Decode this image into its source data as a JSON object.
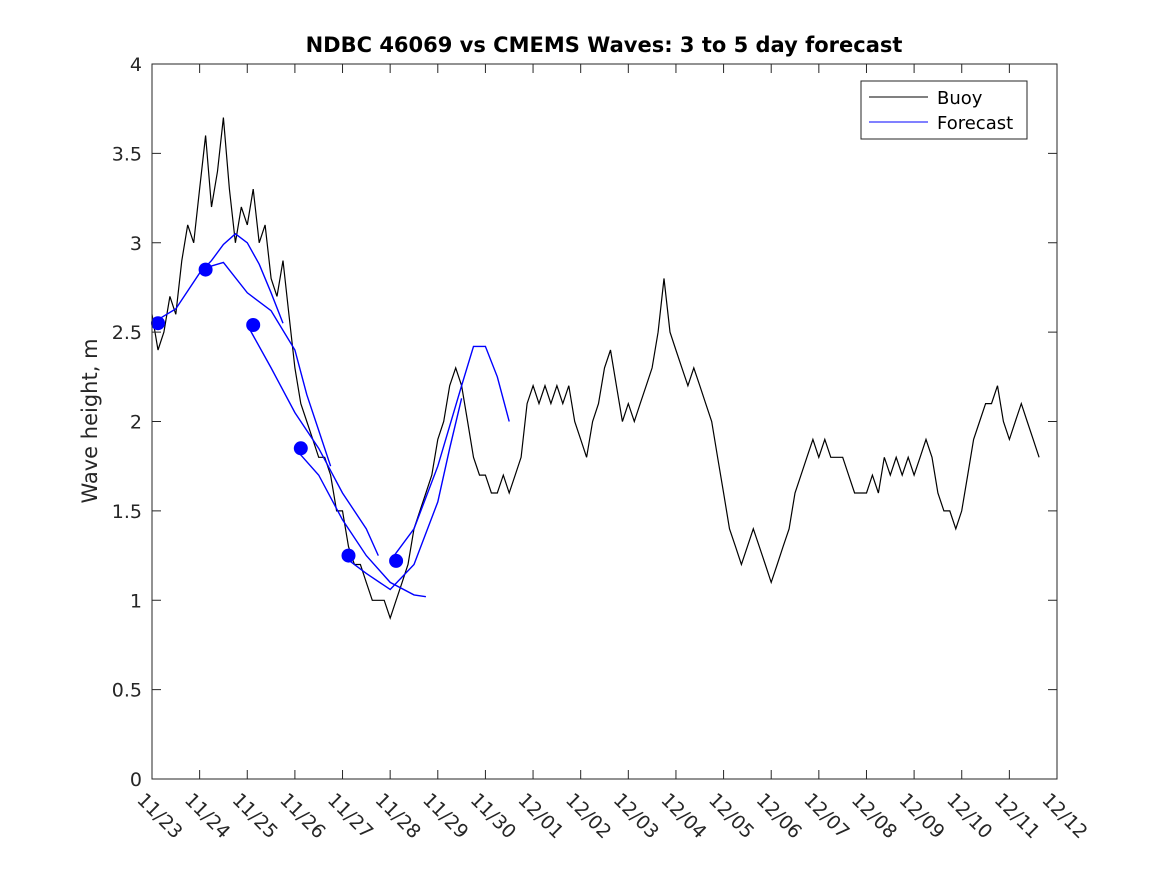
{
  "chart_data": {
    "type": "line",
    "title": "NDBC 46069 vs CMEMS Waves: 3 to 5 day forecast",
    "xlabel": "",
    "ylabel": "Wave height, m",
    "xlim": [
      "11/23",
      "12/12"
    ],
    "ylim": [
      0,
      4
    ],
    "x_tick_labels": [
      "11/23",
      "11/24",
      "11/25",
      "11/26",
      "11/27",
      "11/28",
      "11/29",
      "11/30",
      "12/01",
      "12/02",
      "12/03",
      "12/04",
      "12/05",
      "12/06",
      "12/07",
      "12/08",
      "12/09",
      "12/10",
      "12/11",
      "12/12"
    ],
    "y_tick_labels": [
      "0",
      "0.5",
      "1",
      "1.5",
      "2",
      "2.5",
      "3",
      "3.5",
      "4"
    ],
    "y_ticks": [
      0,
      0.5,
      1,
      1.5,
      2,
      2.5,
      3,
      3.5,
      4
    ],
    "grid": false,
    "legend_position": "top-right",
    "legend": [
      "Buoy",
      "Forecast"
    ],
    "colors": {
      "buoy": "#000000",
      "forecast": "#0000ff",
      "axis": "#262626"
    },
    "series": [
      {
        "name": "Buoy",
        "color": "#000000",
        "points": [
          [
            "11/23 00:00",
            2.6
          ],
          [
            "11/23 03:00",
            2.4
          ],
          [
            "11/23 06:00",
            2.5
          ],
          [
            "11/23 09:00",
            2.7
          ],
          [
            "11/23 12:00",
            2.6
          ],
          [
            "11/23 15:00",
            2.9
          ],
          [
            "11/23 18:00",
            3.1
          ],
          [
            "11/23 21:00",
            3.0
          ],
          [
            "11/24 00:00",
            3.3
          ],
          [
            "11/24 03:00",
            3.6
          ],
          [
            "11/24 06:00",
            3.2
          ],
          [
            "11/24 09:00",
            3.4
          ],
          [
            "11/24 12:00",
            3.7
          ],
          [
            "11/24 15:00",
            3.3
          ],
          [
            "11/24 18:00",
            3.0
          ],
          [
            "11/24 21:00",
            3.2
          ],
          [
            "11/25 00:00",
            3.1
          ],
          [
            "11/25 03:00",
            3.3
          ],
          [
            "11/25 06:00",
            3.0
          ],
          [
            "11/25 09:00",
            3.1
          ],
          [
            "11/25 12:00",
            2.8
          ],
          [
            "11/25 15:00",
            2.7
          ],
          [
            "11/25 18:00",
            2.9
          ],
          [
            "11/25 21:00",
            2.6
          ],
          [
            "11/26 00:00",
            2.3
          ],
          [
            "11/26 03:00",
            2.1
          ],
          [
            "11/26 06:00",
            2.0
          ],
          [
            "11/26 09:00",
            1.9
          ],
          [
            "11/26 12:00",
            1.8
          ],
          [
            "11/26 15:00",
            1.8
          ],
          [
            "11/26 18:00",
            1.7
          ],
          [
            "11/26 21:00",
            1.5
          ],
          [
            "11/27 00:00",
            1.5
          ],
          [
            "11/27 03:00",
            1.3
          ],
          [
            "11/27 06:00",
            1.2
          ],
          [
            "11/27 09:00",
            1.2
          ],
          [
            "11/27 12:00",
            1.1
          ],
          [
            "11/27 15:00",
            1.0
          ],
          [
            "11/27 18:00",
            1.0
          ],
          [
            "11/27 21:00",
            1.0
          ],
          [
            "11/28 00:00",
            0.9
          ],
          [
            "11/28 03:00",
            1.0
          ],
          [
            "11/28 06:00",
            1.1
          ],
          [
            "11/28 09:00",
            1.2
          ],
          [
            "11/28 12:00",
            1.4
          ],
          [
            "11/28 15:00",
            1.5
          ],
          [
            "11/28 18:00",
            1.6
          ],
          [
            "11/28 21:00",
            1.7
          ],
          [
            "11/29 00:00",
            1.9
          ],
          [
            "11/29 03:00",
            2.0
          ],
          [
            "11/29 06:00",
            2.2
          ],
          [
            "11/29 09:00",
            2.3
          ],
          [
            "11/29 12:00",
            2.2
          ],
          [
            "11/29 15:00",
            2.0
          ],
          [
            "11/29 18:00",
            1.8
          ],
          [
            "11/29 21:00",
            1.7
          ],
          [
            "11/30 00:00",
            1.7
          ],
          [
            "11/30 03:00",
            1.6
          ],
          [
            "11/30 06:00",
            1.6
          ],
          [
            "11/30 09:00",
            1.7
          ],
          [
            "11/30 12:00",
            1.6
          ],
          [
            "11/30 15:00",
            1.7
          ],
          [
            "11/30 18:00",
            1.8
          ],
          [
            "11/30 21:00",
            2.1
          ],
          [
            "12/01 00:00",
            2.2
          ],
          [
            "12/01 03:00",
            2.1
          ],
          [
            "12/01 06:00",
            2.2
          ],
          [
            "12/01 09:00",
            2.1
          ],
          [
            "12/01 12:00",
            2.2
          ],
          [
            "12/01 15:00",
            2.1
          ],
          [
            "12/01 18:00",
            2.2
          ],
          [
            "12/01 21:00",
            2.0
          ],
          [
            "12/02 00:00",
            1.9
          ],
          [
            "12/02 03:00",
            1.8
          ],
          [
            "12/02 06:00",
            2.0
          ],
          [
            "12/02 09:00",
            2.1
          ],
          [
            "12/02 12:00",
            2.3
          ],
          [
            "12/02 15:00",
            2.4
          ],
          [
            "12/02 18:00",
            2.2
          ],
          [
            "12/02 21:00",
            2.0
          ],
          [
            "12/03 00:00",
            2.1
          ],
          [
            "12/03 03:00",
            2.0
          ],
          [
            "12/03 06:00",
            2.1
          ],
          [
            "12/03 09:00",
            2.2
          ],
          [
            "12/03 12:00",
            2.3
          ],
          [
            "12/03 15:00",
            2.5
          ],
          [
            "12/03 18:00",
            2.8
          ],
          [
            "12/03 21:00",
            2.5
          ],
          [
            "12/04 00:00",
            2.4
          ],
          [
            "12/04 03:00",
            2.3
          ],
          [
            "12/04 06:00",
            2.2
          ],
          [
            "12/04 09:00",
            2.3
          ],
          [
            "12/04 12:00",
            2.2
          ],
          [
            "12/04 15:00",
            2.1
          ],
          [
            "12/04 18:00",
            2.0
          ],
          [
            "12/04 21:00",
            1.8
          ],
          [
            "12/05 00:00",
            1.6
          ],
          [
            "12/05 03:00",
            1.4
          ],
          [
            "12/05 06:00",
            1.3
          ],
          [
            "12/05 09:00",
            1.2
          ],
          [
            "12/05 12:00",
            1.3
          ],
          [
            "12/05 15:00",
            1.4
          ],
          [
            "12/05 18:00",
            1.3
          ],
          [
            "12/05 21:00",
            1.2
          ],
          [
            "12/06 00:00",
            1.1
          ],
          [
            "12/06 03:00",
            1.2
          ],
          [
            "12/06 06:00",
            1.3
          ],
          [
            "12/06 09:00",
            1.4
          ],
          [
            "12/06 12:00",
            1.6
          ],
          [
            "12/06 15:00",
            1.7
          ],
          [
            "12/06 18:00",
            1.8
          ],
          [
            "12/06 21:00",
            1.9
          ],
          [
            "12/07 00:00",
            1.8
          ],
          [
            "12/07 03:00",
            1.9
          ],
          [
            "12/07 06:00",
            1.8
          ],
          [
            "12/07 09:00",
            1.8
          ],
          [
            "12/07 12:00",
            1.8
          ],
          [
            "12/07 15:00",
            1.7
          ],
          [
            "12/07 18:00",
            1.6
          ],
          [
            "12/07 21:00",
            1.6
          ],
          [
            "12/08 00:00",
            1.6
          ],
          [
            "12/08 03:00",
            1.7
          ],
          [
            "12/08 06:00",
            1.6
          ],
          [
            "12/08 09:00",
            1.8
          ],
          [
            "12/08 12:00",
            1.7
          ],
          [
            "12/08 15:00",
            1.8
          ],
          [
            "12/08 18:00",
            1.7
          ],
          [
            "12/08 21:00",
            1.8
          ],
          [
            "12/09 00:00",
            1.7
          ],
          [
            "12/09 03:00",
            1.8
          ],
          [
            "12/09 06:00",
            1.9
          ],
          [
            "12/09 09:00",
            1.8
          ],
          [
            "12/09 12:00",
            1.6
          ],
          [
            "12/09 15:00",
            1.5
          ],
          [
            "12/09 18:00",
            1.5
          ],
          [
            "12/09 21:00",
            1.4
          ],
          [
            "12/10 00:00",
            1.5
          ],
          [
            "12/10 03:00",
            1.7
          ],
          [
            "12/10 06:00",
            1.9
          ],
          [
            "12/10 09:00",
            2.0
          ],
          [
            "12/10 12:00",
            2.1
          ],
          [
            "12/10 15:00",
            2.1
          ],
          [
            "12/10 18:00",
            2.2
          ],
          [
            "12/10 21:00",
            2.0
          ],
          [
            "12/11 00:00",
            1.9
          ],
          [
            "12/11 03:00",
            2.0
          ],
          [
            "12/11 06:00",
            2.1
          ],
          [
            "12/11 09:00",
            2.0
          ],
          [
            "12/11 12:00",
            1.9
          ],
          [
            "12/11 15:00",
            1.8
          ]
        ]
      },
      {
        "name": "Forecast",
        "color": "#0000ff",
        "line": true,
        "segments": [
          [
            [
              "11/23 00:00",
              2.55
            ],
            [
              "11/23 12:00",
              2.63
            ],
            [
              "11/24 00:00",
              2.83
            ],
            [
              "11/24 06:00",
              2.9
            ],
            [
              "11/24 12:00",
              2.99
            ],
            [
              "11/24 18:00",
              3.05
            ],
            [
              "11/25 00:00",
              3.0
            ],
            [
              "11/25 06:00",
              2.88
            ],
            [
              "11/25 12:00",
              2.72
            ],
            [
              "11/25 18:00",
              2.55
            ]
          ],
          [
            [
              "11/24 00:00",
              2.85
            ],
            [
              "11/24 12:00",
              2.89
            ],
            [
              "11/25 00:00",
              2.72
            ],
            [
              "11/25 12:00",
              2.62
            ],
            [
              "11/26 00:00",
              2.4
            ],
            [
              "11/26 06:00",
              2.15
            ],
            [
              "11/26 12:00",
              1.95
            ],
            [
              "11/26 18:00",
              1.75
            ]
          ],
          [
            [
              "11/25 00:00",
              2.54
            ],
            [
              "11/25 12:00",
              2.3
            ],
            [
              "11/26 00:00",
              2.05
            ],
            [
              "11/26 12:00",
              1.85
            ],
            [
              "11/27 00:00",
              1.6
            ],
            [
              "11/27 12:00",
              1.4
            ],
            [
              "11/27 18:00",
              1.25
            ]
          ],
          [
            [
              "11/26 00:00",
              1.85
            ],
            [
              "11/26 12:00",
              1.7
            ],
            [
              "11/27 00:00",
              1.45
            ],
            [
              "11/27 12:00",
              1.25
            ],
            [
              "11/28 00:00",
              1.1
            ],
            [
              "11/28 12:00",
              1.03
            ],
            [
              "11/28 18:00",
              1.02
            ]
          ],
          [
            [
              "11/27 00:00",
              1.25
            ],
            [
              "11/27 12:00",
              1.15
            ],
            [
              "11/28 00:00",
              1.06
            ],
            [
              "11/28 12:00",
              1.2
            ],
            [
              "11/29 00:00",
              1.55
            ],
            [
              "11/29 06:00",
              1.85
            ],
            [
              "11/29 12:00",
              2.13
            ]
          ],
          [
            [
              "11/28 00:00",
              1.22
            ],
            [
              "11/28 12:00",
              1.4
            ],
            [
              "11/29 00:00",
              1.75
            ],
            [
              "11/29 12:00",
              2.2
            ],
            [
              "11/29 18:00",
              2.42
            ],
            [
              "11/30 00:00",
              2.42
            ],
            [
              "11/30 06:00",
              2.25
            ],
            [
              "11/30 12:00",
              2.0
            ]
          ]
        ]
      },
      {
        "name": "Forecast start",
        "color": "#0000ff",
        "marker": "circle",
        "points": [
          [
            "11/23 03:00",
            2.55
          ],
          [
            "11/24 03:00",
            2.85
          ],
          [
            "11/25 03:00",
            2.54
          ],
          [
            "11/26 03:00",
            1.85
          ],
          [
            "11/27 03:00",
            1.25
          ],
          [
            "11/28 03:00",
            1.22
          ]
        ]
      }
    ]
  }
}
